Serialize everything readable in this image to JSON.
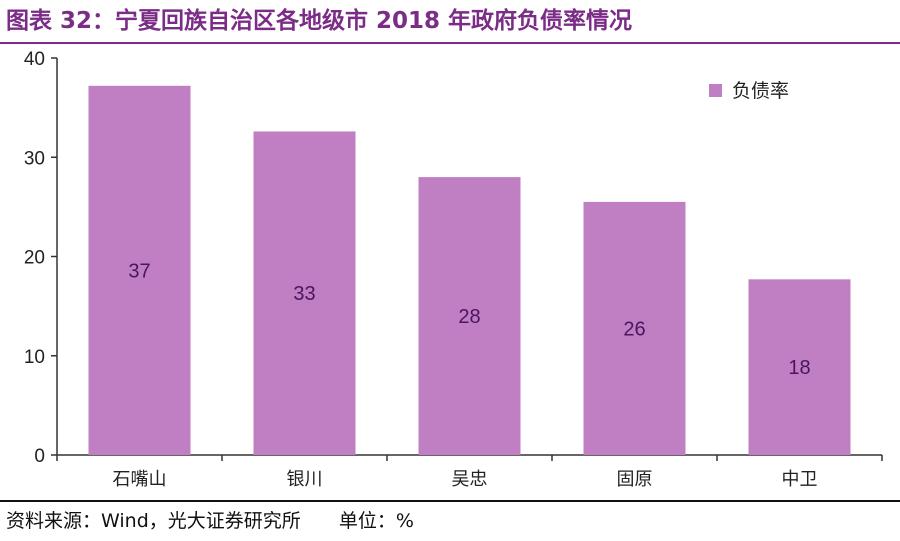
{
  "title": "图表 32：宁夏回族自治区各地级市 2018 年政府负债率情况",
  "footer": {
    "source": "资料来源：Wind，光大证券研究所",
    "unit": "单位：%"
  },
  "colors": {
    "bar": "#bf7fc2",
    "accent": "#7b2c86",
    "axis": "#333333"
  },
  "chart_data": {
    "type": "bar",
    "categories": [
      "石嘴山",
      "银川",
      "吴忠",
      "固原",
      "中卫"
    ],
    "series": [
      {
        "name": "负债率",
        "values": [
          37.2,
          32.6,
          28.0,
          25.5,
          17.7
        ],
        "labels": [
          "37",
          "33",
          "28",
          "26",
          "18"
        ]
      }
    ],
    "ylim": [
      0,
      40
    ],
    "yticks": [
      0,
      10,
      20,
      30,
      40
    ],
    "legend": "top-right",
    "grid": false
  }
}
